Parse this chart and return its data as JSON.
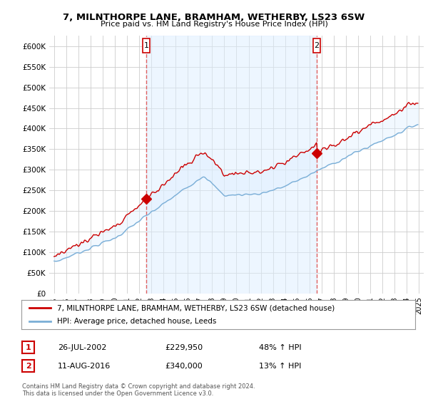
{
  "title": "7, MILNTHORPE LANE, BRAMHAM, WETHERBY, LS23 6SW",
  "subtitle": "Price paid vs. HM Land Registry's House Price Index (HPI)",
  "ylim": [
    0,
    625000
  ],
  "yticks": [
    0,
    50000,
    100000,
    150000,
    200000,
    250000,
    300000,
    350000,
    400000,
    450000,
    500000,
    550000,
    600000
  ],
  "ytick_labels": [
    "£0",
    "£50K",
    "£100K",
    "£150K",
    "£200K",
    "£250K",
    "£300K",
    "£350K",
    "£400K",
    "£450K",
    "£500K",
    "£550K",
    "£600K"
  ],
  "xlim_start": 1994.6,
  "xlim_end": 2025.4,
  "transaction1_x": 2002.57,
  "transaction1_y": 229950,
  "transaction1_label": "1",
  "transaction2_x": 2016.61,
  "transaction2_y": 340000,
  "transaction2_label": "2",
  "property_color": "#cc0000",
  "hpi_color": "#7aaed6",
  "vline_color": "#e06060",
  "fill_color": "#ddeeff",
  "legend_property": "7, MILNTHORPE LANE, BRAMHAM, WETHERBY, LS23 6SW (detached house)",
  "legend_hpi": "HPI: Average price, detached house, Leeds",
  "table_rows": [
    {
      "num": "1",
      "date": "26-JUL-2002",
      "price": "£229,950",
      "change": "48% ↑ HPI"
    },
    {
      "num": "2",
      "date": "11-AUG-2016",
      "price": "£340,000",
      "change": "13% ↑ HPI"
    }
  ],
  "footer": "Contains HM Land Registry data © Crown copyright and database right 2024.\nThis data is licensed under the Open Government Licence v3.0.",
  "background_color": "#ffffff",
  "grid_color": "#cccccc"
}
